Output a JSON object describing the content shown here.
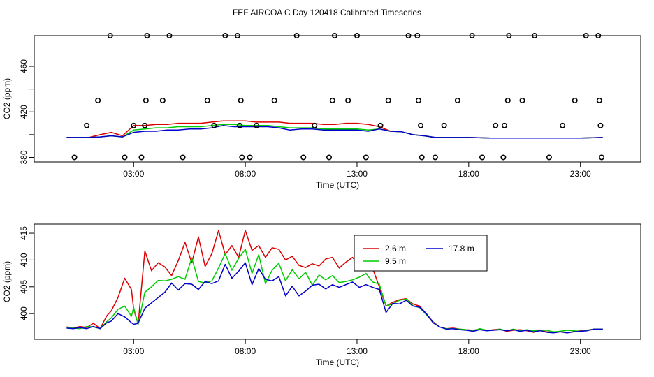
{
  "title": "FEF AIRCOA C  Day 120418  Calibrated Timeseries",
  "colors": {
    "s1": "#dd0000",
    "s2": "#00cc00",
    "s3": "#0000cc",
    "marker": "#000000"
  },
  "chart_data": [
    {
      "type": "line",
      "name": "top-panel",
      "xlabel": "Time (UTC)",
      "ylabel": "CO2 (ppm)",
      "xlim": [
        -1.45,
        25.7
      ],
      "ylim": [
        376,
        487
      ],
      "xticks": [
        3,
        8,
        13,
        18,
        23
      ],
      "xtick_labels": [
        "03:00",
        "08:00",
        "13:00",
        "18:00",
        "23:00"
      ],
      "yticks": [
        380,
        400,
        420,
        440,
        460
      ],
      "ytick_labels": [
        "380",
        "",
        "420",
        "",
        "460"
      ],
      "series_time": [
        0.0,
        0.5,
        1.0,
        1.5,
        2.0,
        2.5,
        3.0,
        3.5,
        4.0,
        4.5,
        5.0,
        5.5,
        6.0,
        6.5,
        7.0,
        7.5,
        8.0,
        8.5,
        9.0,
        9.5,
        10.0,
        10.5,
        11.0,
        11.5,
        12.0,
        12.5,
        13.0,
        13.5,
        14.0,
        14.5,
        15.0,
        15.5,
        16.0,
        16.5,
        17.0,
        18.0,
        19.0,
        20.0,
        21.0,
        22.0,
        23.0,
        24.0
      ],
      "series": [
        {
          "name": "2.6 m",
          "values": [
            397.5,
            397.5,
            397.5,
            400,
            402,
            399,
            408,
            408,
            409,
            409,
            410,
            410,
            410,
            411,
            412,
            412,
            412,
            411,
            411,
            411,
            410,
            410,
            410,
            409,
            409,
            410,
            410,
            409,
            407,
            403,
            402.5,
            400,
            399,
            397.5,
            397.5,
            397.5,
            397,
            397,
            397,
            397,
            397,
            397.5
          ]
        },
        {
          "name": "9.5 m",
          "values": [
            397.5,
            397.5,
            397.5,
            398,
            399,
            398,
            404,
            405,
            406,
            406,
            407,
            407,
            407,
            408,
            409,
            409,
            408,
            408,
            408,
            407,
            406,
            406,
            406,
            405,
            405,
            405,
            405,
            404,
            405,
            403,
            402.5,
            400,
            399,
            397.5,
            397.5,
            397.5,
            397,
            397,
            397,
            397,
            397,
            397.5
          ]
        },
        {
          "name": "17.8 m",
          "values": [
            397.5,
            397.5,
            397.5,
            398,
            399,
            398,
            402,
            403,
            403,
            404,
            404,
            405,
            405,
            406,
            408,
            407,
            407,
            407,
            407,
            406,
            404,
            405,
            405,
            404,
            404,
            404,
            404,
            403,
            405,
            403,
            402.5,
            400,
            399,
            397.5,
            397.5,
            397.5,
            397,
            397,
            397,
            397,
            397,
            397.5
          ]
        }
      ],
      "points": [
        [
          0.35,
          380
        ],
        [
          0.9,
          408
        ],
        [
          1.4,
          430
        ],
        [
          1.95,
          487
        ],
        [
          2.6,
          380
        ],
        [
          3.0,
          408
        ],
        [
          3.35,
          380
        ],
        [
          3.55,
          430
        ],
        [
          3.6,
          487
        ],
        [
          3.5,
          408
        ],
        [
          4.3,
          430
        ],
        [
          4.6,
          487
        ],
        [
          5.2,
          380
        ],
        [
          6.3,
          430
        ],
        [
          6.6,
          408
        ],
        [
          7.1,
          487
        ],
        [
          7.65,
          487
        ],
        [
          7.8,
          430
        ],
        [
          7.75,
          408
        ],
        [
          7.85,
          380
        ],
        [
          8.2,
          380
        ],
        [
          8.5,
          408
        ],
        [
          9.3,
          430
        ],
        [
          10.3,
          487
        ],
        [
          10.6,
          380
        ],
        [
          11.1,
          408
        ],
        [
          11.75,
          380
        ],
        [
          11.9,
          430
        ],
        [
          12.0,
          487
        ],
        [
          12.6,
          430
        ],
        [
          13.0,
          487
        ],
        [
          13.4,
          380
        ],
        [
          14.05,
          408
        ],
        [
          14.4,
          430
        ],
        [
          15.3,
          487
        ],
        [
          15.7,
          487
        ],
        [
          15.75,
          430
        ],
        [
          15.85,
          408
        ],
        [
          15.9,
          380
        ],
        [
          16.5,
          380
        ],
        [
          16.9,
          408
        ],
        [
          17.5,
          430
        ],
        [
          18.15,
          487
        ],
        [
          18.6,
          380
        ],
        [
          19.2,
          408
        ],
        [
          19.55,
          380
        ],
        [
          19.6,
          408
        ],
        [
          19.75,
          430
        ],
        [
          19.8,
          487
        ],
        [
          20.4,
          430
        ],
        [
          20.95,
          487
        ],
        [
          21.6,
          380
        ],
        [
          22.2,
          408
        ],
        [
          22.75,
          430
        ],
        [
          23.25,
          487
        ],
        [
          23.8,
          487
        ],
        [
          23.85,
          430
        ],
        [
          23.9,
          408
        ],
        [
          23.95,
          380
        ]
      ]
    },
    {
      "type": "line",
      "name": "bottom-panel",
      "xlabel": "Time (UTC)",
      "ylabel": "CO2 (ppm)",
      "xlim": [
        -1.45,
        25.7
      ],
      "ylim": [
        395.2,
        416.7
      ],
      "xticks": [
        3,
        8,
        13,
        18,
        23
      ],
      "xtick_labels": [
        "03:00",
        "08:00",
        "13:00",
        "18:00",
        "23:00"
      ],
      "yticks": [
        400,
        405,
        410,
        415
      ],
      "ytick_labels": [
        "400",
        "405",
        "410",
        "415"
      ],
      "legend": {
        "position": "top-right",
        "entries": [
          "2.6 m",
          "9.5 m",
          "17.8 m"
        ]
      },
      "series_time": [
        0.0,
        0.3,
        0.6,
        0.9,
        1.2,
        1.5,
        1.8,
        2.0,
        2.3,
        2.6,
        2.9,
        3.0,
        3.2,
        3.5,
        3.8,
        4.1,
        4.4,
        4.7,
        5.0,
        5.3,
        5.6,
        5.9,
        6.2,
        6.5,
        6.8,
        7.1,
        7.4,
        7.7,
        8.0,
        8.3,
        8.6,
        8.9,
        9.2,
        9.5,
        9.8,
        10.1,
        10.4,
        10.7,
        11.0,
        11.3,
        11.6,
        11.9,
        12.2,
        12.5,
        12.8,
        13.1,
        13.4,
        13.7,
        14.0,
        14.3,
        14.6,
        14.9,
        15.2,
        15.5,
        15.8,
        16.1,
        16.4,
        16.7,
        17.0,
        17.3,
        17.6,
        17.9,
        18.2,
        18.5,
        18.8,
        19.1,
        19.4,
        19.7,
        20.0,
        20.3,
        20.6,
        20.9,
        21.2,
        21.5,
        21.8,
        22.1,
        22.4,
        22.7,
        23.0,
        23.3,
        23.6,
        24.0
      ],
      "series": [
        {
          "name": "2.6 m",
          "values": [
            397.5,
            397.3,
            397.6,
            397.4,
            398.2,
            397.2,
            399.6,
            400.5,
            403.0,
            406.6,
            404.5,
            400.8,
            398.0,
            411.7,
            408.0,
            409.5,
            408.7,
            407.1,
            409.9,
            413.3,
            409.5,
            414.3,
            408.8,
            411.2,
            415.5,
            411.0,
            412.7,
            410.5,
            415.5,
            411.8,
            412.7,
            410.5,
            412.3,
            412.0,
            410.0,
            410.7,
            409.0,
            408.6,
            409.3,
            408.9,
            410.2,
            410.5,
            408.5,
            409.6,
            410.5,
            408.8,
            409.5,
            408.4,
            405.0,
            401.4,
            402.1,
            402.6,
            402.8,
            401.8,
            401.4,
            400.0,
            398.5,
            397.5,
            397.2,
            397.3,
            397.1,
            397.0,
            396.9,
            397.1,
            396.8,
            397.0,
            397.1,
            396.7,
            396.9,
            397.0,
            396.8,
            396.5,
            396.9,
            396.6,
            396.5,
            396.7,
            396.4,
            396.6,
            396.8,
            396.9,
            397.1,
            397.1
          ]
        },
        {
          "name": "9.5 m",
          "values": [
            397.3,
            397.3,
            397.2,
            397.6,
            397.5,
            397.2,
            398.5,
            399.2,
            400.8,
            401.4,
            399.5,
            401.1,
            398.0,
            404.0,
            405.0,
            406.2,
            406.1,
            406.4,
            406.9,
            406.4,
            410.4,
            406.0,
            405.7,
            406.1,
            408.5,
            411.2,
            408.1,
            410.3,
            412.0,
            407.5,
            411.0,
            405.6,
            408.1,
            409.4,
            406.1,
            408.2,
            406.5,
            407.7,
            405.3,
            407.2,
            406.3,
            407.1,
            405.8,
            406.0,
            406.3,
            406.8,
            407.5,
            405.9,
            405.5,
            401.4,
            401.8,
            402.5,
            402.7,
            401.5,
            401.1,
            399.8,
            398.4,
            397.5,
            397.2,
            397.2,
            397.1,
            397.0,
            396.8,
            397.2,
            396.9,
            396.9,
            397.1,
            396.8,
            397.1,
            396.8,
            397.0,
            396.8,
            396.9,
            396.9,
            396.6,
            396.7,
            396.9,
            396.8,
            396.7,
            396.9,
            397.1,
            397.1
          ]
        },
        {
          "name": "17.8 m",
          "values": [
            397.3,
            397.2,
            397.4,
            397.2,
            397.6,
            397.2,
            398.3,
            398.6,
            400.0,
            399.4,
            398.3,
            398.0,
            398.2,
            401.0,
            402.0,
            403.0,
            404.0,
            405.7,
            404.4,
            405.6,
            405.5,
            404.5,
            406.0,
            405.6,
            406.1,
            409.2,
            406.6,
            407.9,
            409.5,
            405.4,
            408.4,
            406.4,
            406.1,
            406.9,
            403.3,
            405.1,
            403.3,
            404.2,
            405.3,
            405.5,
            404.6,
            405.4,
            404.9,
            405.4,
            405.9,
            404.9,
            405.4,
            404.9,
            404.5,
            400.2,
            401.9,
            401.8,
            402.5,
            401.4,
            401.2,
            400.0,
            398.3,
            397.5,
            397.1,
            397.2,
            397.0,
            396.9,
            396.7,
            397.0,
            396.8,
            396.9,
            397.0,
            396.8,
            397.0,
            396.7,
            396.9,
            396.6,
            396.8,
            396.5,
            396.4,
            396.6,
            396.4,
            396.6,
            396.7,
            396.8,
            397.1,
            397.1
          ]
        }
      ]
    }
  ]
}
